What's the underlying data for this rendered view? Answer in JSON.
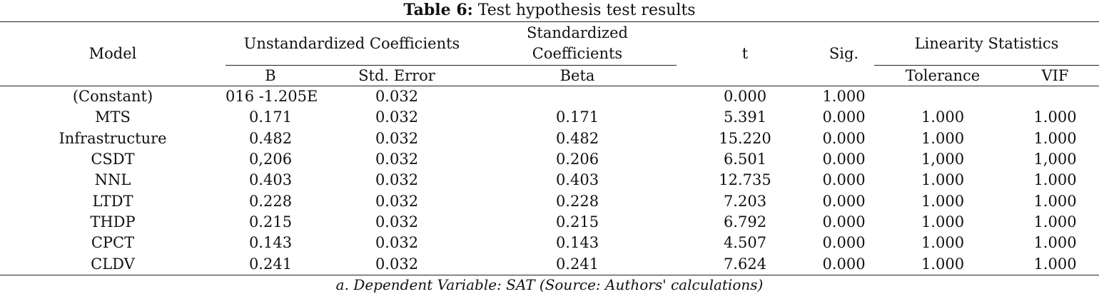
{
  "caption": {
    "label": "Table 6:",
    "text": "Test hypothesis test results"
  },
  "header": {
    "model": "Model",
    "unstd": "Unstandardized Coefficients",
    "std_line1": "Standardized",
    "std_line2": "Coefficients",
    "t": "t",
    "sig": "Sig.",
    "linearity": "Linearity Statistics",
    "b": "B",
    "std_error": "Std. Error",
    "beta": "Beta",
    "tolerance": "Tolerance",
    "vif": "VIF"
  },
  "rows": [
    {
      "model": "(Constant)",
      "b": "016 -1.205E",
      "se": "0.032",
      "beta": "",
      "t": "0.000",
      "sig": "1.000",
      "tol": "",
      "vif": ""
    },
    {
      "model": "MTS",
      "b": "0.171",
      "se": "0.032",
      "beta": "0.171",
      "t": "5.391",
      "sig": "0.000",
      "tol": "1.000",
      "vif": "1.000"
    },
    {
      "model": "Infrastructure",
      "b": "0.482",
      "se": "0.032",
      "beta": "0.482",
      "t": "15.220",
      "sig": "0.000",
      "tol": "1.000",
      "vif": "1.000"
    },
    {
      "model": "CSDT",
      "b": "0,206",
      "se": "0.032",
      "beta": "0.206",
      "t": "6.501",
      "sig": "0.000",
      "tol": "1,000",
      "vif": "1,000"
    },
    {
      "model": "NNL",
      "b": "0.403",
      "se": "0.032",
      "beta": "0.403",
      "t": "12.735",
      "sig": "0.000",
      "tol": "1.000",
      "vif": "1.000"
    },
    {
      "model": "LTDT",
      "b": "0.228",
      "se": "0.032",
      "beta": "0.228",
      "t": "7.203",
      "sig": "0.000",
      "tol": "1.000",
      "vif": "1.000"
    },
    {
      "model": "THDP",
      "b": "0.215",
      "se": "0.032",
      "beta": "0.215",
      "t": "6.792",
      "sig": "0.000",
      "tol": "1.000",
      "vif": "1.000"
    },
    {
      "model": "CPCT",
      "b": "0.143",
      "se": "0.032",
      "beta": "0.143",
      "t": "4.507",
      "sig": "0.000",
      "tol": "1.000",
      "vif": "1.000"
    },
    {
      "model": "CLDV",
      "b": "0.241",
      "se": "0.032",
      "beta": "0.241",
      "t": "7.624",
      "sig": "0.000",
      "tol": "1.000",
      "vif": "1.000"
    }
  ],
  "note": "a. Dependent Variable: SAT (Source: Authors' calculations)"
}
